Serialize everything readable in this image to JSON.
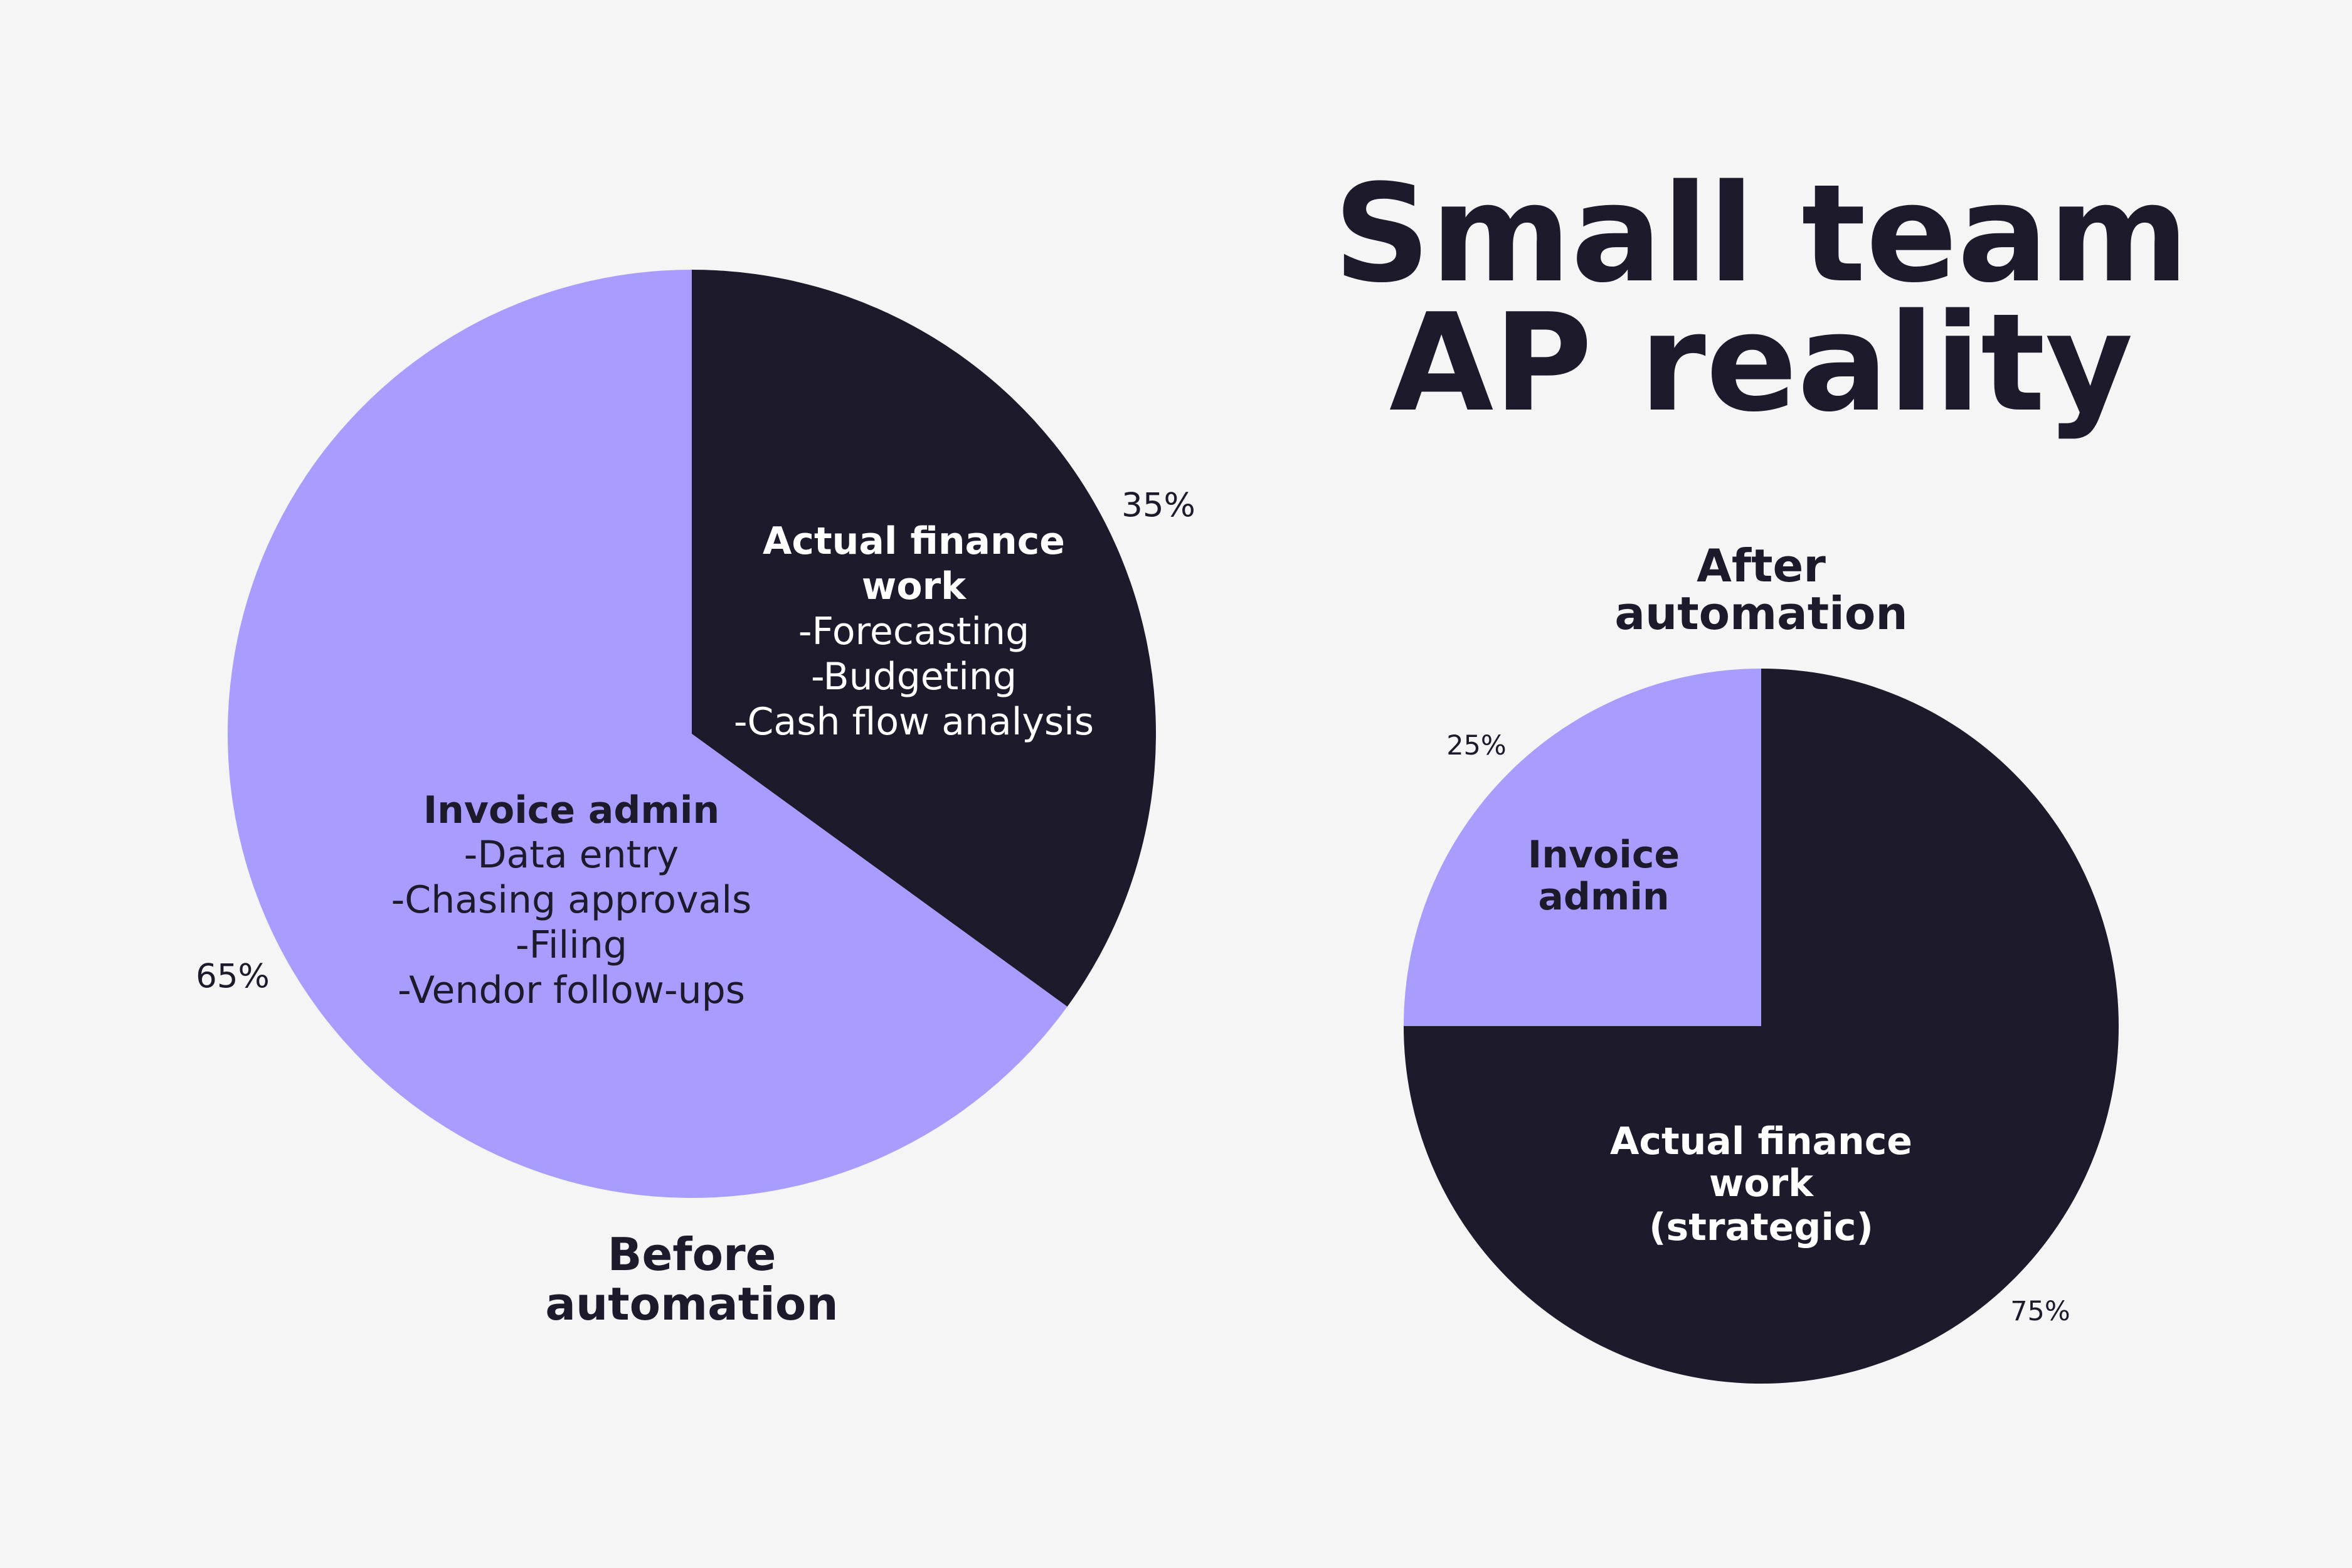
{
  "title": {
    "line1": "Small team",
    "line2": "AP reality"
  },
  "colors": {
    "background": "#f5f5f5",
    "dark": "#1c1a2b",
    "purple": "#a99cff",
    "white": "#ffffff"
  },
  "chart_data": [
    {
      "type": "pie",
      "caption": [
        "Before",
        "automation"
      ],
      "slices": [
        {
          "label": "Actual finance work",
          "value": 35,
          "value_label": "35%",
          "color": "#1c1a2b",
          "lines": [
            "Actual finance",
            "work",
            "-Forecasting",
            "-Budgeting",
            "-Cash flow analysis"
          ]
        },
        {
          "label": "Invoice admin",
          "value": 65,
          "value_label": "65%",
          "color": "#a99cff",
          "lines": [
            "Invoice admin",
            "-Data entry",
            "-Chasing approvals",
            "-Filing",
            "-Vendor follow-ups"
          ]
        }
      ]
    },
    {
      "type": "pie",
      "caption": [
        "After",
        "automation"
      ],
      "slices": [
        {
          "label": "Actual finance work (strategic)",
          "value": 75,
          "value_label": "75%",
          "color": "#1c1a2b",
          "lines": [
            "Actual finance",
            "work",
            "(strategic)"
          ]
        },
        {
          "label": "Invoice admin",
          "value": 25,
          "value_label": "25%",
          "color": "#a99cff",
          "lines": [
            "Invoice",
            "admin"
          ]
        }
      ]
    }
  ]
}
